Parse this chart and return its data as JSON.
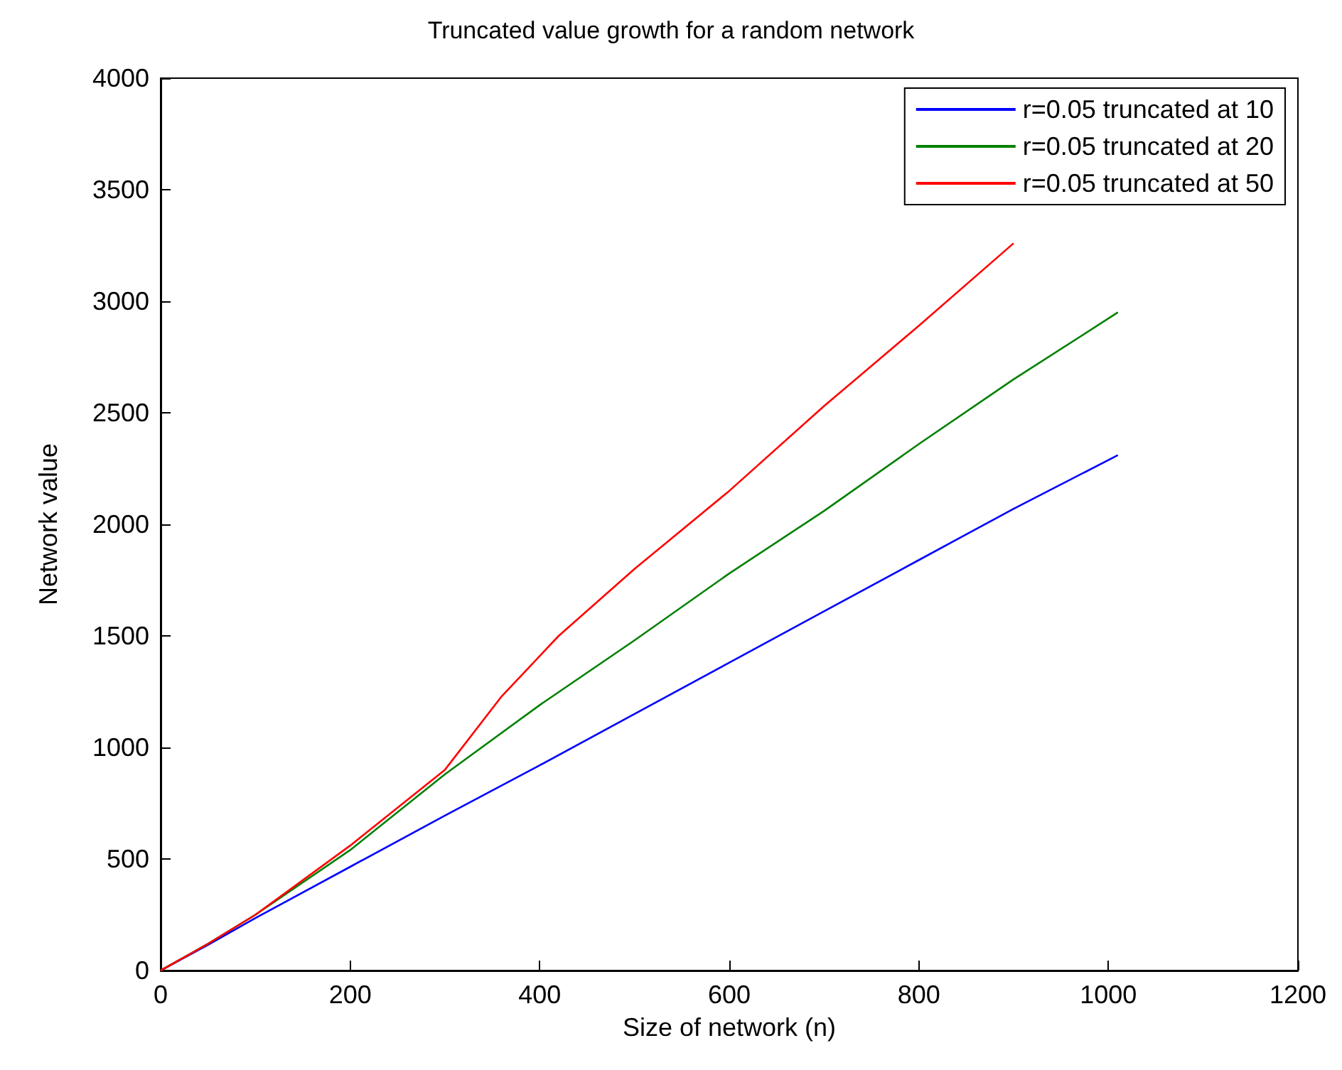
{
  "chart_data": {
    "type": "line",
    "title": "Truncated value growth for a random network",
    "xlabel": "Size of network (n)",
    "ylabel": "Network value",
    "xlim": [
      0,
      1200
    ],
    "xticks": [
      0,
      200,
      400,
      600,
      800,
      1000,
      1200
    ],
    "ylim": [
      0,
      4000
    ],
    "yticks": [
      0,
      500,
      1000,
      1500,
      2000,
      2500,
      3000,
      3500,
      4000
    ],
    "grid": false,
    "legend": "top right",
    "marker": "none",
    "line_style": "solid",
    "series": [
      {
        "name": "r=0.05 truncated at 10",
        "color": "#0000ff",
        "x": [
          0,
          50,
          100,
          200,
          300,
          400,
          500,
          600,
          700,
          800,
          900,
          1010
        ],
        "values": [
          0,
          115,
          235,
          465,
          695,
          920,
          1150,
          1380,
          1610,
          1840,
          2070,
          2310
        ]
      },
      {
        "name": "r=0.05 truncated at 20",
        "color": "#008000",
        "x": [
          0,
          50,
          100,
          200,
          300,
          400,
          500,
          600,
          700,
          800,
          900,
          1010
        ],
        "values": [
          0,
          120,
          250,
          540,
          880,
          1190,
          1480,
          1780,
          2060,
          2360,
          2650,
          2950
        ]
      },
      {
        "name": "r=0.05 truncated at 50",
        "color": "#ff0000",
        "x": [
          0,
          50,
          100,
          200,
          300,
          360,
          420,
          500,
          600,
          700,
          800,
          900
        ],
        "values": [
          0,
          120,
          250,
          560,
          900,
          1230,
          1500,
          1800,
          2150,
          2530,
          2890,
          3260
        ]
      }
    ]
  }
}
